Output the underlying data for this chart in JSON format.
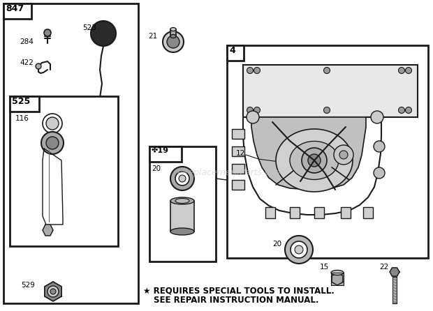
{
  "bg_color": "#ffffff",
  "line_color": "#1a1a1a",
  "watermark": "eReplacementParts.com",
  "footer_line1": "★ REQUIRES SPECIAL TOOLS TO INSTALL.",
  "footer_line2": "SEE REPAIR INSTRUCTION MANUAL."
}
